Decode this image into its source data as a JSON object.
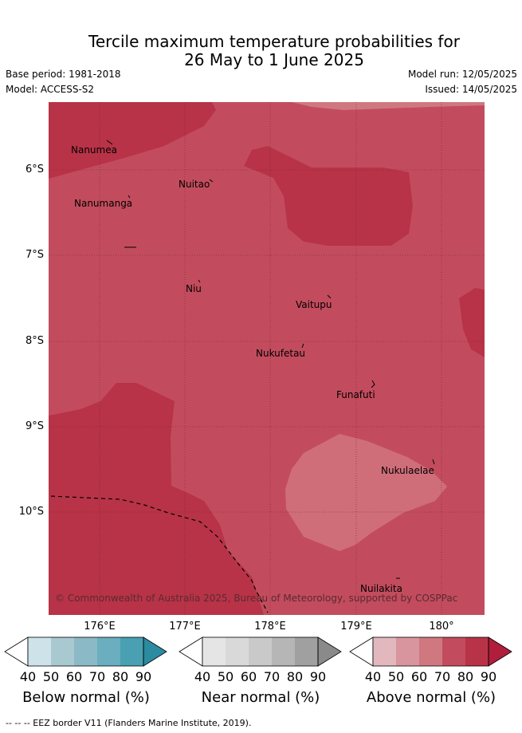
{
  "title_line1": "Tercile maximum temperature probabilities for",
  "title_line2": "26 May to 1 June 2025",
  "base_period": "Base period: 1981-2018",
  "model": "Model: ACCESS-S2",
  "model_run": "Model run: 12/05/2025",
  "issued": "Issued: 14/05/2025",
  "lat_labels": [
    "6°S",
    "7°S",
    "8°S",
    "9°S",
    "10°S"
  ],
  "lon_labels": [
    "176°E",
    "177°E",
    "178°E",
    "179°E",
    "180°"
  ],
  "places": [
    "Nanumea",
    "Nuitao",
    "Nanumanga",
    "Niu",
    "Vaitupu",
    "Nukufetau",
    "Funafuti",
    "Nukulaelae",
    "Nuilakita"
  ],
  "copyright": "© Commonwealth of Australia 2025, Bureau of Meteorology, supported by COSPPac",
  "colorbars": [
    {
      "label": "Below normal (%)",
      "ticks": [
        "40",
        "50",
        "60",
        "70",
        "80",
        "90"
      ],
      "colors": [
        "#ffffff",
        "#cde3e9",
        "#a9c9d0",
        "#8bb9c6",
        "#6aaebf",
        "#48a0b2",
        "#2b8ba0"
      ]
    },
    {
      "label": "Near normal (%)",
      "ticks": [
        "40",
        "50",
        "60",
        "70",
        "80",
        "90"
      ],
      "colors": [
        "#ffffff",
        "#e5e5e5",
        "#d9d9d9",
        "#c9c9c9",
        "#b6b6b6",
        "#a0a0a0",
        "#8a8a8a"
      ]
    },
    {
      "label": "Above normal (%)",
      "ticks": [
        "40",
        "50",
        "60",
        "70",
        "80",
        "90"
      ],
      "colors": [
        "#ffffff",
        "#e2b8be",
        "#d8959d",
        "#cf7880",
        "#c24c5d",
        "#b83347",
        "#b01e3c"
      ]
    }
  ],
  "map_colors": {
    "base": "#c24c5d",
    "high": "#b83347",
    "low": "#cf6e79",
    "grid": "#6b2431"
  },
  "footer": "-- -- -- EEZ border V11 (Flanders Marine Institute, 2019)."
}
